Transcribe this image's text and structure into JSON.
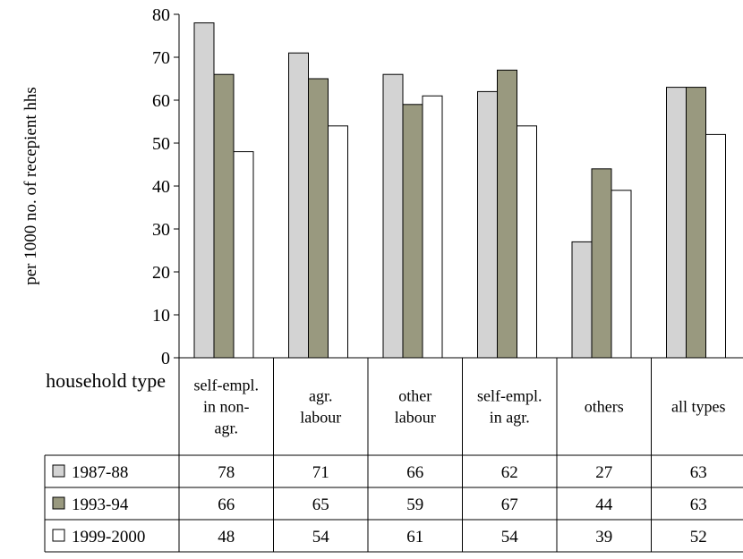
{
  "chart_data": {
    "type": "bar",
    "title": "",
    "ylabel": "per 1000 no. of recepient hhs",
    "xlabel": "household type",
    "ylim": [
      0,
      80
    ],
    "yticks": [
      0,
      10,
      20,
      30,
      40,
      50,
      60,
      70,
      80
    ],
    "categories": [
      [
        "self-empl.",
        "in non-",
        "agr."
      ],
      [
        "agr.",
        "labour"
      ],
      [
        "other",
        "labour"
      ],
      [
        "self-empl.",
        "in agr."
      ],
      [
        "others"
      ],
      [
        "all types"
      ]
    ],
    "series": [
      {
        "name": "1987-88",
        "values": [
          78,
          71,
          66,
          62,
          27,
          63
        ],
        "color": "#d3d3d3"
      },
      {
        "name": "1993-94",
        "values": [
          66,
          65,
          59,
          67,
          44,
          63
        ],
        "color": "#99997f"
      },
      {
        "name": "1999-2000",
        "values": [
          48,
          54,
          61,
          54,
          39,
          52
        ],
        "color": "#ffffff"
      }
    ],
    "grid": false,
    "legend": "data-table-left"
  }
}
